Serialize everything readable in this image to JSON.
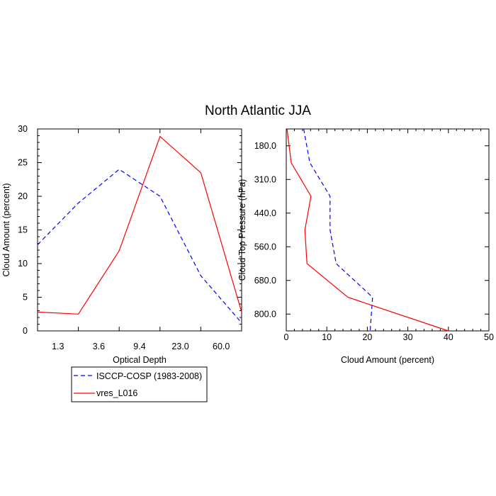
{
  "figure": {
    "title": "North Atlantic JJA"
  },
  "legend": {
    "placement": "below-left",
    "entries": [
      {
        "label": "ISCCP-COSP (1983-2008)",
        "color": "#0000ff",
        "dash": "dashed"
      },
      {
        "label": "vres_L016",
        "color": "#ff0000",
        "dash": "solid"
      }
    ]
  },
  "chart_data": [
    {
      "type": "line",
      "xlabel": "Optical Depth",
      "ylabel": "Cloud Amount (percent)",
      "x_tick_labels": [
        "1.3",
        "3.6",
        "9.4",
        "23.0",
        "60.0"
      ],
      "yticks": [
        0,
        5,
        10,
        15,
        20,
        25,
        30
      ],
      "ylim": [
        0,
        30
      ],
      "grid": false,
      "series": [
        {
          "name": "ISCCP-COSP (1983-2008)",
          "color": "#0000ff",
          "dash": "dashed",
          "values": [
            12.8,
            19.0,
            24.0,
            20.0,
            8.2,
            1.2
          ]
        },
        {
          "name": "vres_L016",
          "color": "#ff0000",
          "dash": "solid",
          "values": [
            2.8,
            2.5,
            11.9,
            28.9,
            23.5,
            2.8
          ]
        }
      ]
    },
    {
      "type": "line",
      "xlabel": "Cloud Amount (percent)",
      "ylabel": "Cloud Top Pressure (hPa)",
      "xticks": [
        0,
        10,
        20,
        30,
        40,
        50
      ],
      "xlim": [
        0,
        50
      ],
      "y_tick_labels": [
        "180.0",
        "310.0",
        "440.0",
        "560.0",
        "680.0",
        "800.0"
      ],
      "grid": false,
      "series": [
        {
          "name": "ISCCP-COSP (1983-2008)",
          "color": "#0000ff",
          "dash": "dashed",
          "values": [
            4.3,
            5.8,
            10.8,
            10.8,
            12.3,
            21.3,
            20.7
          ]
        },
        {
          "name": "vres_L016",
          "color": "#ff0000",
          "dash": "solid",
          "values": [
            0.2,
            1.2,
            6.1,
            4.6,
            5.1,
            15.2,
            40.0
          ]
        }
      ]
    }
  ]
}
